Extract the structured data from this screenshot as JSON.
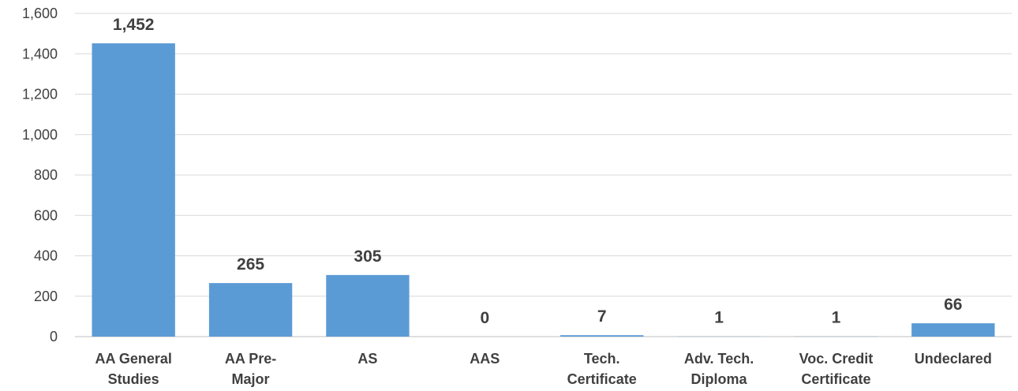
{
  "chart_data": {
    "type": "bar",
    "title": "",
    "xlabel": "",
    "ylabel": "",
    "ylim": [
      0,
      1600
    ],
    "y_ticks": [
      0,
      200,
      400,
      600,
      800,
      1000,
      1200,
      1400,
      1600
    ],
    "y_tick_labels": [
      "0",
      "200",
      "400",
      "600",
      "800",
      "1,000",
      "1,200",
      "1,400",
      "1,600"
    ],
    "grid": true,
    "legend": "none",
    "bar_color": "#5b9bd5",
    "categories": [
      [
        "AA General",
        "Studies"
      ],
      [
        "AA Pre-",
        "Major"
      ],
      [
        "AS"
      ],
      [
        "AAS"
      ],
      [
        "Tech.",
        "Certificate"
      ],
      [
        "Adv. Tech.",
        "Diploma"
      ],
      [
        "Voc. Credit",
        "Certificate"
      ],
      [
        "Undeclared"
      ]
    ],
    "values": [
      1452,
      265,
      305,
      0,
      7,
      1,
      1,
      66
    ],
    "data_labels": [
      "1,452",
      "265",
      "305",
      "0",
      "7",
      "1",
      "1",
      "66"
    ]
  }
}
